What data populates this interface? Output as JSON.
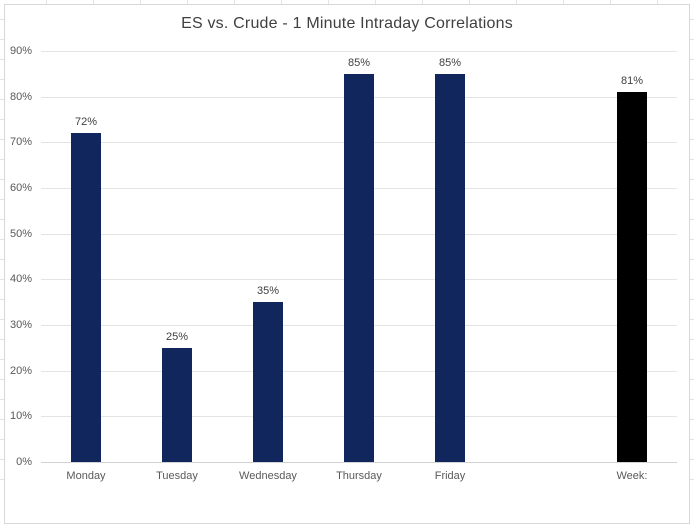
{
  "chart_data": {
    "type": "bar",
    "title": "ES vs. Crude - 1 Minute Intraday Correlations",
    "categories": [
      "Monday",
      "Tuesday",
      "Wednesday",
      "Thursday",
      "Friday",
      "",
      "Week:"
    ],
    "values": [
      72,
      25,
      35,
      85,
      85,
      null,
      81
    ],
    "data_labels": [
      "72%",
      "25%",
      "35%",
      "85%",
      "85%",
      null,
      "81%"
    ],
    "bar_colors": [
      "#11265d",
      "#11265d",
      "#11265d",
      "#11265d",
      "#11265d",
      null,
      "#000000"
    ],
    "xlabel": "",
    "ylabel": "",
    "ylim": [
      0,
      90
    ],
    "yticks": {
      "values": [
        0,
        10,
        20,
        30,
        40,
        50,
        60,
        70,
        80,
        90
      ],
      "labels": [
        "0%",
        "10%",
        "20%",
        "30%",
        "40%",
        "50%",
        "60%",
        "70%",
        "80%",
        "90%"
      ]
    },
    "grid": "horizontal",
    "legend": "none"
  },
  "colors": {
    "bar_primary": "#11265d",
    "bar_week": "#000000",
    "gridline": "#e2e5e7",
    "axis_line": "#d2d2d2",
    "chart_border": "#d7d7d7",
    "title_text": "#404040",
    "axis_text": "#595959",
    "data_label_text": "#404040",
    "sheet_grid": "#e4e4e4"
  }
}
